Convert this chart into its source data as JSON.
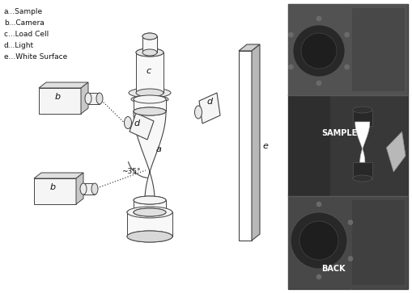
{
  "legend_lines": [
    "a...Sample",
    "b...Camera",
    "c...Load Cell",
    "d...Light",
    "e...White Surface"
  ],
  "angle_label": "~35°",
  "labels": {
    "a": "a",
    "b": "b",
    "c": "c",
    "d": "d",
    "e": "e",
    "sample": "SAMPLE",
    "back": "BACK"
  },
  "bg_color": "#ffffff",
  "line_color": "#444444",
  "text_color": "#111111",
  "photo_text_color": "#ffffff",
  "photo_bg": "#555555",
  "figsize": [
    5.09,
    3.63
  ],
  "dpi": 100
}
